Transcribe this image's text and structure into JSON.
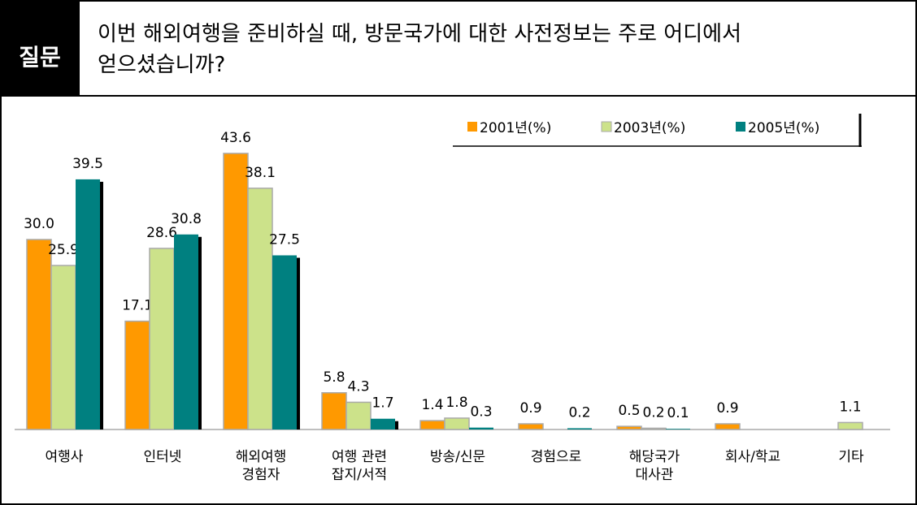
{
  "header": {
    "label": "질문",
    "question": "이번 해외여행을 준비하실 때, 방문국가에 대한 사전정보는 주로 어디에서\n얻으셨습니까?"
  },
  "chart_data": {
    "type": "bar",
    "categories": [
      "여행사",
      "인터넷",
      "해외여행\n경험자",
      "여행 관련\n잡지/서적",
      "방송/신문",
      "경험으로",
      "해당국가\n대사관",
      "회사/학교",
      "기타"
    ],
    "series": [
      {
        "name": "2001년(%)",
        "color": "#ff9900",
        "values": [
          30.0,
          17.1,
          43.6,
          5.8,
          1.4,
          0.9,
          0.5,
          0.9,
          null
        ],
        "value_labels": [
          "30.0",
          "17.1",
          "43.6",
          "5.8",
          "1.4",
          "0.9",
          "0.5",
          "0.9",
          null
        ]
      },
      {
        "name": "2003년(%)",
        "color": "#cce28a",
        "values": [
          25.9,
          28.6,
          38.1,
          4.3,
          1.8,
          null,
          0.2,
          null,
          1.1
        ],
        "value_labels": [
          "25.9",
          "28.6",
          "38.1",
          "4.3",
          "1.8",
          null,
          "0.2",
          null,
          "1.1"
        ]
      },
      {
        "name": "2005년(%)",
        "color": "#008080",
        "values": [
          39.5,
          30.8,
          27.5,
          1.7,
          0.3,
          0.2,
          0.1,
          null,
          null
        ],
        "value_labels": [
          "39.5",
          "30.8",
          "27.5",
          "1.7",
          "0.3",
          "0.2",
          "0.1",
          null,
          null
        ]
      }
    ],
    "ylim": [
      0,
      50
    ],
    "legend": "top-right",
    "grid": false
  }
}
